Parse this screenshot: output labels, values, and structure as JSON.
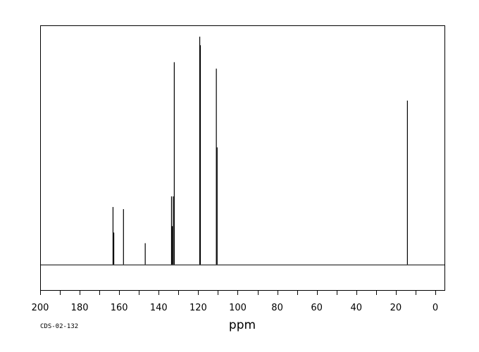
{
  "chart_data": {
    "type": "line",
    "title": "",
    "xlabel": "ppm",
    "ylabel": "",
    "spectrum_id": "CDS-02-132",
    "xlim": [
      200,
      -5
    ],
    "x_reversed": true,
    "ylim": [
      -0.12,
      1.12
    ],
    "grid": false,
    "x_ticks": [
      200,
      180,
      160,
      140,
      120,
      100,
      80,
      60,
      40,
      20,
      0
    ],
    "peaks": [
      {
        "ppm": 163.3,
        "intensity": 0.27
      },
      {
        "ppm": 162.9,
        "intensity": 0.15
      },
      {
        "ppm": 158.0,
        "intensity": 0.26
      },
      {
        "ppm": 147.0,
        "intensity": 0.1
      },
      {
        "ppm": 133.7,
        "intensity": 0.32
      },
      {
        "ppm": 133.3,
        "intensity": 0.18
      },
      {
        "ppm": 132.8,
        "intensity": 0.32
      },
      {
        "ppm": 132.3,
        "intensity": 0.95
      },
      {
        "ppm": 119.4,
        "intensity": 1.07
      },
      {
        "ppm": 119.1,
        "intensity": 1.03
      },
      {
        "ppm": 111.0,
        "intensity": 0.92
      },
      {
        "ppm": 110.6,
        "intensity": 0.55
      },
      {
        "ppm": 14.3,
        "intensity": 0.77
      }
    ]
  },
  "colors": {
    "axis": "#000000",
    "line": "#000000",
    "background": "#ffffff"
  }
}
